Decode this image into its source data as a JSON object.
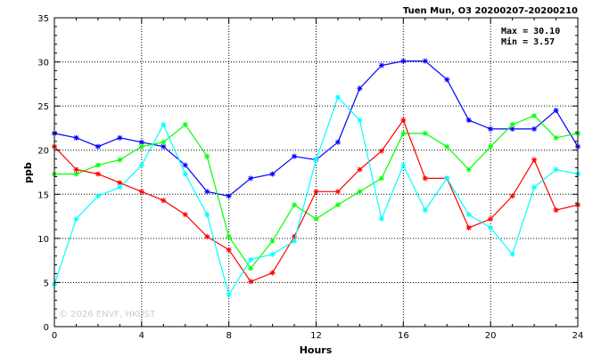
{
  "chart_data": {
    "type": "line",
    "title": "Tuen Mun, O3 20200207-20200210",
    "xlabel": "Hours",
    "ylabel": "ppb",
    "xlim": [
      0,
      24
    ],
    "ylim": [
      0,
      35
    ],
    "x_ticks": [
      "0",
      "4",
      "8",
      "12",
      "16",
      "20",
      "24"
    ],
    "y_ticks": [
      "0",
      "5",
      "10",
      "15",
      "20",
      "25",
      "30",
      "35"
    ],
    "grid": true,
    "annotations": {
      "max_label": "Max = 30.10",
      "min_label": "Min =  3.57"
    },
    "watermark": "© 2026 ENVF, HKUST",
    "x": [
      0,
      1,
      2,
      3,
      4,
      5,
      6,
      7,
      8,
      9,
      10,
      11,
      12,
      13,
      14,
      15,
      16,
      17,
      18,
      19,
      20,
      21,
      22,
      23,
      24
    ],
    "series": [
      {
        "color": "#0000ff",
        "marker": "*",
        "values": [
          21.9,
          21.4,
          20.4,
          21.4,
          20.9,
          20.4,
          18.3,
          15.3,
          14.8,
          16.8,
          17.3,
          19.3,
          18.9,
          20.9,
          27.0,
          29.6,
          30.1,
          30.1,
          28.0,
          23.4,
          22.4,
          22.4,
          22.4,
          24.5,
          20.4
        ]
      },
      {
        "color": "#00ff00",
        "marker": "*",
        "values": [
          17.3,
          17.3,
          18.3,
          18.9,
          20.4,
          20.9,
          22.9,
          19.3,
          10.2,
          6.6,
          9.7,
          13.8,
          12.2,
          13.8,
          15.3,
          16.8,
          21.9,
          21.9,
          20.4,
          17.8,
          20.4,
          22.9,
          23.9,
          21.4,
          21.9
        ]
      },
      {
        "color": "#ff0000",
        "marker": "*",
        "values": [
          20.4,
          17.8,
          17.3,
          16.3,
          15.3,
          14.3,
          12.7,
          10.2,
          8.7,
          5.1,
          6.1,
          10.2,
          15.3,
          15.3,
          17.8,
          19.9,
          23.4,
          16.8,
          16.8,
          11.2,
          12.2,
          14.8,
          18.9,
          13.2,
          13.8
        ]
      },
      {
        "color": "#00ffff",
        "marker": "*",
        "values": [
          4.8,
          12.2,
          14.8,
          15.8,
          18.3,
          22.9,
          17.3,
          12.7,
          3.6,
          7.6,
          8.2,
          9.7,
          18.9,
          26.0,
          23.4,
          12.2,
          18.3,
          13.2,
          16.8,
          12.7,
          11.2,
          8.2,
          15.8,
          17.8,
          17.3
        ]
      }
    ]
  }
}
